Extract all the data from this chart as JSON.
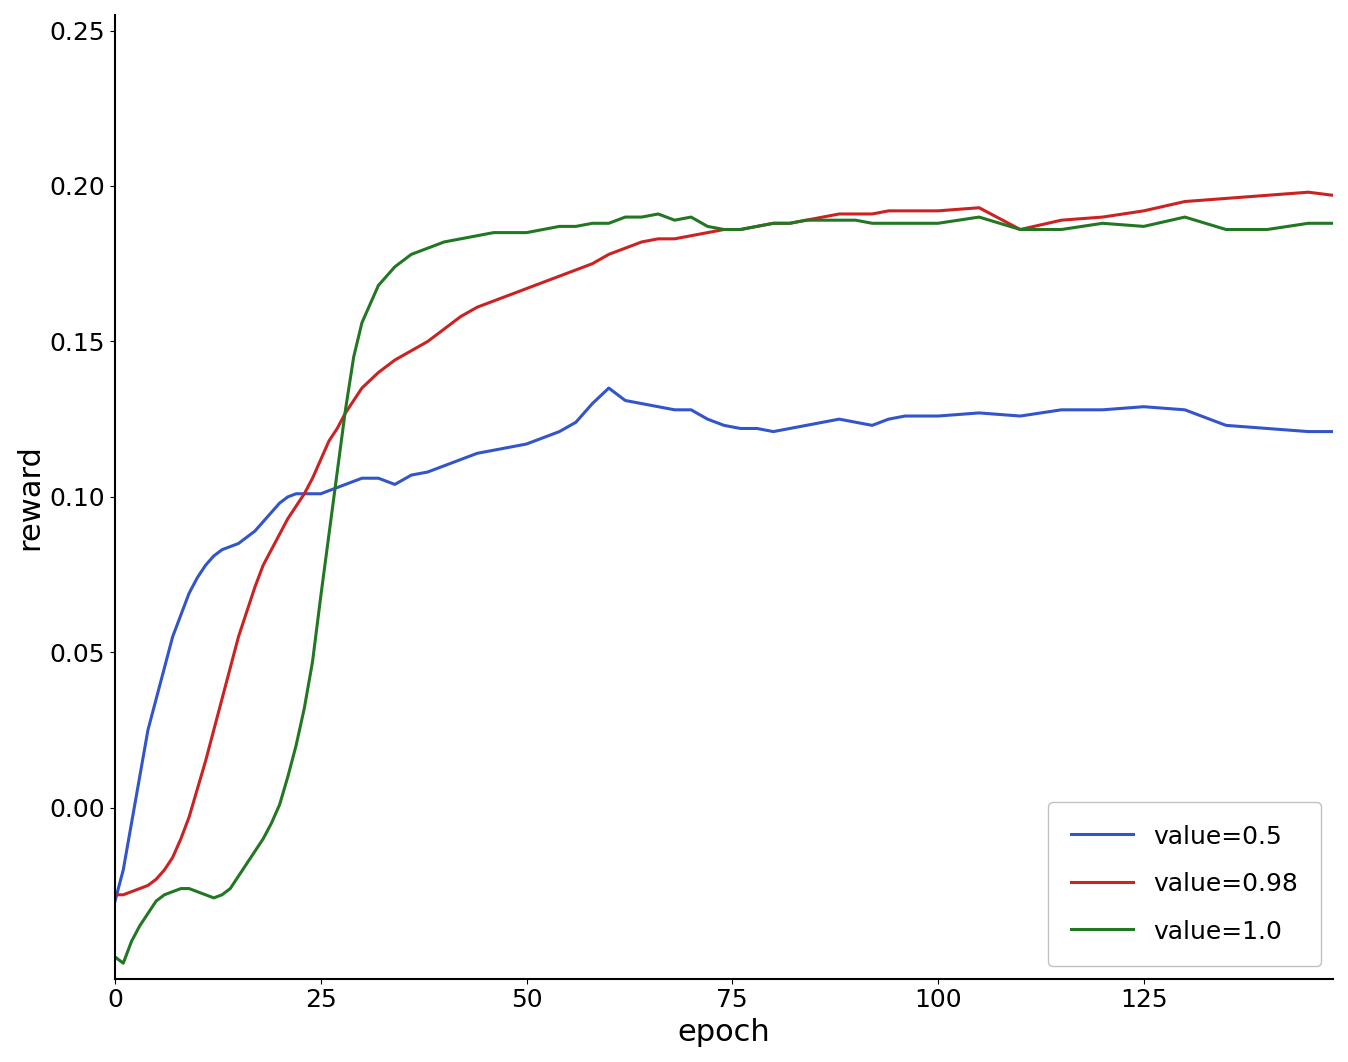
{
  "title": "",
  "xlabel": "epoch",
  "ylabel": "reward",
  "xlim": [
    0,
    148
  ],
  "ylim": [
    -0.055,
    0.255
  ],
  "xticks": [
    0,
    25,
    50,
    75,
    100,
    125
  ],
  "yticks": [
    0.0,
    0.05,
    0.1,
    0.15,
    0.2,
    0.25
  ],
  "legend_labels": [
    "value=0.5",
    "value=0.98",
    "value=1.0"
  ],
  "line_colors": [
    "#3355cc",
    "#cc2222",
    "#227722"
  ],
  "line_width": 2.2,
  "figsize": [
    13.48,
    10.62
  ],
  "dpi": 100,
  "series": {
    "blue": {
      "x": [
        0,
        1,
        2,
        3,
        4,
        5,
        6,
        7,
        8,
        9,
        10,
        11,
        12,
        13,
        14,
        15,
        16,
        17,
        18,
        19,
        20,
        21,
        22,
        23,
        24,
        25,
        26,
        27,
        28,
        29,
        30,
        32,
        34,
        36,
        38,
        40,
        42,
        44,
        46,
        48,
        50,
        52,
        54,
        56,
        58,
        60,
        62,
        64,
        66,
        68,
        70,
        72,
        74,
        76,
        78,
        80,
        82,
        84,
        86,
        88,
        90,
        92,
        94,
        96,
        98,
        100,
        105,
        110,
        115,
        120,
        125,
        130,
        135,
        140,
        145,
        148
      ],
      "y": [
        -0.03,
        -0.02,
        -0.005,
        0.01,
        0.025,
        0.035,
        0.045,
        0.055,
        0.062,
        0.069,
        0.074,
        0.078,
        0.081,
        0.083,
        0.084,
        0.085,
        0.087,
        0.089,
        0.092,
        0.095,
        0.098,
        0.1,
        0.101,
        0.101,
        0.101,
        0.101,
        0.102,
        0.103,
        0.104,
        0.105,
        0.106,
        0.106,
        0.104,
        0.107,
        0.108,
        0.11,
        0.112,
        0.114,
        0.115,
        0.116,
        0.117,
        0.119,
        0.121,
        0.124,
        0.13,
        0.135,
        0.131,
        0.13,
        0.129,
        0.128,
        0.128,
        0.125,
        0.123,
        0.122,
        0.122,
        0.121,
        0.122,
        0.123,
        0.124,
        0.125,
        0.124,
        0.123,
        0.125,
        0.126,
        0.126,
        0.126,
        0.127,
        0.126,
        0.128,
        0.128,
        0.129,
        0.128,
        0.123,
        0.122,
        0.121,
        0.121
      ]
    },
    "red": {
      "x": [
        0,
        1,
        2,
        3,
        4,
        5,
        6,
        7,
        8,
        9,
        10,
        11,
        12,
        13,
        14,
        15,
        16,
        17,
        18,
        19,
        20,
        21,
        22,
        23,
        24,
        25,
        26,
        27,
        28,
        29,
        30,
        32,
        34,
        36,
        38,
        40,
        42,
        44,
        46,
        48,
        50,
        52,
        54,
        56,
        58,
        60,
        62,
        64,
        66,
        68,
        70,
        72,
        74,
        76,
        78,
        80,
        82,
        84,
        86,
        88,
        90,
        92,
        94,
        96,
        98,
        100,
        105,
        110,
        115,
        120,
        125,
        130,
        135,
        140,
        145,
        148
      ],
      "y": [
        -0.028,
        -0.028,
        -0.027,
        -0.026,
        -0.025,
        -0.023,
        -0.02,
        -0.016,
        -0.01,
        -0.003,
        0.006,
        0.015,
        0.025,
        0.035,
        0.045,
        0.055,
        0.063,
        0.071,
        0.078,
        0.083,
        0.088,
        0.093,
        0.097,
        0.101,
        0.106,
        0.112,
        0.118,
        0.122,
        0.127,
        0.131,
        0.135,
        0.14,
        0.144,
        0.147,
        0.15,
        0.154,
        0.158,
        0.161,
        0.163,
        0.165,
        0.167,
        0.169,
        0.171,
        0.173,
        0.175,
        0.178,
        0.18,
        0.182,
        0.183,
        0.183,
        0.184,
        0.185,
        0.186,
        0.186,
        0.187,
        0.188,
        0.188,
        0.189,
        0.19,
        0.191,
        0.191,
        0.191,
        0.192,
        0.192,
        0.192,
        0.192,
        0.193,
        0.186,
        0.189,
        0.19,
        0.192,
        0.195,
        0.196,
        0.197,
        0.198,
        0.197
      ]
    },
    "green": {
      "x": [
        0,
        1,
        2,
        3,
        4,
        5,
        6,
        7,
        8,
        9,
        10,
        11,
        12,
        13,
        14,
        15,
        16,
        17,
        18,
        19,
        20,
        21,
        22,
        23,
        24,
        25,
        26,
        27,
        28,
        29,
        30,
        32,
        34,
        36,
        38,
        40,
        42,
        44,
        46,
        48,
        50,
        52,
        54,
        56,
        58,
        60,
        62,
        64,
        66,
        68,
        70,
        72,
        74,
        76,
        78,
        80,
        82,
        84,
        86,
        88,
        90,
        92,
        94,
        96,
        98,
        100,
        105,
        110,
        115,
        120,
        125,
        130,
        135,
        140,
        145,
        148
      ],
      "y": [
        -0.048,
        -0.05,
        -0.043,
        -0.038,
        -0.034,
        -0.03,
        -0.028,
        -0.027,
        -0.026,
        -0.026,
        -0.027,
        -0.028,
        -0.029,
        -0.028,
        -0.026,
        -0.022,
        -0.018,
        -0.014,
        -0.01,
        -0.005,
        0.001,
        0.01,
        0.02,
        0.032,
        0.047,
        0.068,
        0.088,
        0.108,
        0.128,
        0.145,
        0.156,
        0.168,
        0.174,
        0.178,
        0.18,
        0.182,
        0.183,
        0.184,
        0.185,
        0.185,
        0.185,
        0.186,
        0.187,
        0.187,
        0.188,
        0.188,
        0.19,
        0.19,
        0.191,
        0.189,
        0.19,
        0.187,
        0.186,
        0.186,
        0.187,
        0.188,
        0.188,
        0.189,
        0.189,
        0.189,
        0.189,
        0.188,
        0.188,
        0.188,
        0.188,
        0.188,
        0.19,
        0.186,
        0.186,
        0.188,
        0.187,
        0.19,
        0.186,
        0.186,
        0.188,
        0.188
      ]
    }
  }
}
